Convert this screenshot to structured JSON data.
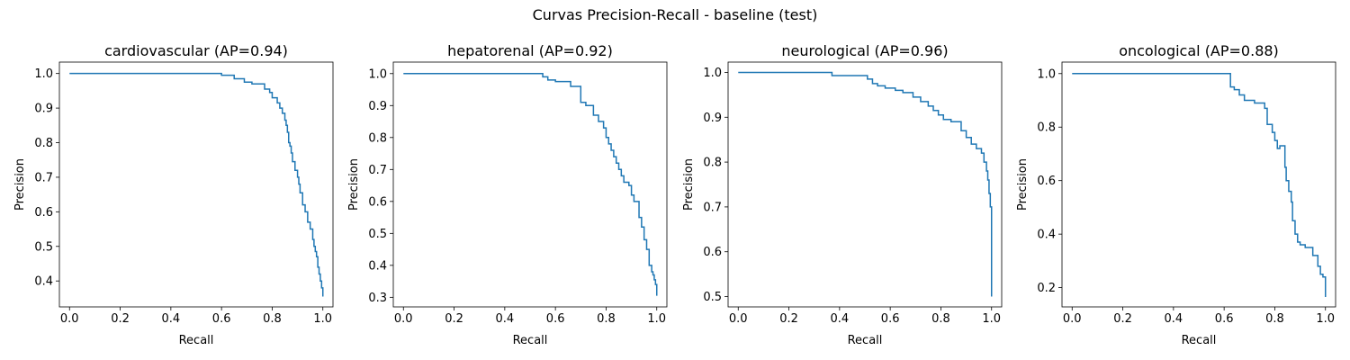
{
  "figure": {
    "title": "Curvas Precision-Recall - baseline (test)"
  },
  "chart_data": [
    {
      "type": "line",
      "title": "cardiovascular (AP=0.94)",
      "xlabel": "Recall",
      "ylabel": "Precision",
      "xlim": [
        -0.04,
        1.04
      ],
      "ylim": [
        0.325,
        1.033
      ],
      "xticks": [
        0.0,
        0.2,
        0.4,
        0.6,
        0.8,
        1.0
      ],
      "xtick_labels": [
        "0.0",
        "0.2",
        "0.4",
        "0.6",
        "0.8",
        "1.0"
      ],
      "yticks": [
        0.4,
        0.5,
        0.6,
        0.7,
        0.8,
        0.9,
        1.0
      ],
      "ytick_labels": [
        "0.4",
        "0.5",
        "0.6",
        "0.7",
        "0.8",
        "0.9",
        "1.0"
      ],
      "color": "#1f77b4",
      "series": [
        {
          "x": [
            0.0,
            0.6,
            0.6,
            0.65,
            0.65,
            0.69,
            0.69,
            0.72,
            0.72,
            0.77,
            0.77,
            0.79,
            0.79,
            0.8,
            0.8,
            0.82,
            0.82,
            0.83,
            0.83,
            0.84,
            0.84,
            0.85,
            0.85,
            0.855,
            0.855,
            0.86,
            0.86,
            0.865,
            0.865,
            0.87,
            0.87,
            0.875,
            0.875,
            0.88,
            0.88,
            0.89,
            0.89,
            0.9,
            0.9,
            0.905,
            0.905,
            0.91,
            0.91,
            0.92,
            0.92,
            0.93,
            0.93,
            0.94,
            0.94,
            0.95,
            0.95,
            0.96,
            0.96,
            0.965,
            0.965,
            0.97,
            0.97,
            0.975,
            0.975,
            0.98,
            0.98,
            0.985,
            0.985,
            0.99,
            0.99,
            0.995,
            0.995,
            1.0,
            1.0
          ],
          "y": [
            1.0,
            1.0,
            0.995,
            0.995,
            0.985,
            0.985,
            0.975,
            0.975,
            0.97,
            0.97,
            0.955,
            0.955,
            0.945,
            0.945,
            0.93,
            0.93,
            0.915,
            0.915,
            0.9,
            0.9,
            0.885,
            0.885,
            0.865,
            0.865,
            0.85,
            0.85,
            0.83,
            0.83,
            0.8,
            0.8,
            0.79,
            0.79,
            0.77,
            0.77,
            0.745,
            0.745,
            0.72,
            0.72,
            0.7,
            0.7,
            0.68,
            0.68,
            0.655,
            0.655,
            0.62,
            0.62,
            0.6,
            0.6,
            0.57,
            0.57,
            0.55,
            0.55,
            0.52,
            0.52,
            0.5,
            0.5,
            0.485,
            0.485,
            0.47,
            0.47,
            0.44,
            0.44,
            0.42,
            0.42,
            0.4,
            0.4,
            0.38,
            0.38,
            0.355
          ]
        }
      ]
    },
    {
      "type": "line",
      "title": "hepatorenal (AP=0.92)",
      "xlabel": "Recall",
      "ylabel": "Precision",
      "xlim": [
        -0.04,
        1.04
      ],
      "ylim": [
        0.27,
        1.036
      ],
      "xticks": [
        0.0,
        0.2,
        0.4,
        0.6,
        0.8,
        1.0
      ],
      "xtick_labels": [
        "0.0",
        "0.2",
        "0.4",
        "0.6",
        "0.8",
        "1.0"
      ],
      "yticks": [
        0.3,
        0.4,
        0.5,
        0.6,
        0.7,
        0.8,
        0.9,
        1.0
      ],
      "ytick_labels": [
        "0.3",
        "0.4",
        "0.5",
        "0.6",
        "0.7",
        "0.8",
        "0.9",
        "1.0"
      ],
      "color": "#1f77b4",
      "series": [
        {
          "x": [
            0.0,
            0.55,
            0.55,
            0.57,
            0.57,
            0.6,
            0.6,
            0.66,
            0.66,
            0.7,
            0.7,
            0.72,
            0.72,
            0.75,
            0.75,
            0.77,
            0.77,
            0.79,
            0.79,
            0.8,
            0.8,
            0.81,
            0.81,
            0.82,
            0.82,
            0.83,
            0.83,
            0.84,
            0.84,
            0.85,
            0.85,
            0.86,
            0.86,
            0.87,
            0.87,
            0.89,
            0.89,
            0.9,
            0.9,
            0.91,
            0.91,
            0.93,
            0.93,
            0.94,
            0.94,
            0.95,
            0.95,
            0.96,
            0.96,
            0.97,
            0.97,
            0.98,
            0.98,
            0.985,
            0.985,
            0.99,
            0.99,
            0.995,
            0.995,
            1.0,
            1.0
          ],
          "y": [
            1.0,
            1.0,
            0.99,
            0.99,
            0.98,
            0.98,
            0.975,
            0.975,
            0.96,
            0.96,
            0.91,
            0.91,
            0.9,
            0.9,
            0.87,
            0.87,
            0.85,
            0.85,
            0.83,
            0.83,
            0.8,
            0.8,
            0.78,
            0.78,
            0.76,
            0.76,
            0.74,
            0.74,
            0.72,
            0.72,
            0.7,
            0.7,
            0.68,
            0.68,
            0.66,
            0.66,
            0.65,
            0.65,
            0.62,
            0.62,
            0.6,
            0.6,
            0.55,
            0.55,
            0.52,
            0.52,
            0.48,
            0.48,
            0.45,
            0.45,
            0.4,
            0.4,
            0.38,
            0.38,
            0.37,
            0.37,
            0.355,
            0.355,
            0.34,
            0.34,
            0.305
          ]
        }
      ]
    },
    {
      "type": "line",
      "title": "neurological (AP=0.96)",
      "xlabel": "Recall",
      "ylabel": "Precision",
      "xlim": [
        -0.04,
        1.04
      ],
      "ylim": [
        0.477,
        1.023
      ],
      "xticks": [
        0.0,
        0.2,
        0.4,
        0.6,
        0.8,
        1.0
      ],
      "xtick_labels": [
        "0.0",
        "0.2",
        "0.4",
        "0.6",
        "0.8",
        "1.0"
      ],
      "yticks": [
        0.5,
        0.6,
        0.7,
        0.8,
        0.9,
        1.0
      ],
      "ytick_labels": [
        "0.5",
        "0.6",
        "0.7",
        "0.8",
        "0.9",
        "1.0"
      ],
      "color": "#1f77b4",
      "series": [
        {
          "x": [
            0.0,
            0.37,
            0.37,
            0.51,
            0.51,
            0.53,
            0.53,
            0.55,
            0.55,
            0.58,
            0.58,
            0.62,
            0.62,
            0.65,
            0.65,
            0.69,
            0.69,
            0.72,
            0.72,
            0.75,
            0.75,
            0.77,
            0.77,
            0.79,
            0.79,
            0.81,
            0.81,
            0.84,
            0.84,
            0.88,
            0.88,
            0.9,
            0.9,
            0.92,
            0.92,
            0.94,
            0.94,
            0.96,
            0.96,
            0.97,
            0.97,
            0.98,
            0.98,
            0.985,
            0.985,
            0.99,
            0.99,
            0.995,
            0.995,
            1.0,
            1.0
          ],
          "y": [
            1.0,
            1.0,
            0.993,
            0.993,
            0.985,
            0.985,
            0.975,
            0.975,
            0.97,
            0.97,
            0.965,
            0.965,
            0.96,
            0.96,
            0.955,
            0.955,
            0.945,
            0.945,
            0.935,
            0.935,
            0.925,
            0.925,
            0.915,
            0.915,
            0.905,
            0.905,
            0.895,
            0.895,
            0.89,
            0.89,
            0.87,
            0.87,
            0.855,
            0.855,
            0.84,
            0.84,
            0.83,
            0.83,
            0.82,
            0.82,
            0.8,
            0.8,
            0.78,
            0.78,
            0.76,
            0.76,
            0.73,
            0.73,
            0.7,
            0.7,
            0.5
          ]
        }
      ]
    },
    {
      "type": "line",
      "title": "oncological (AP=0.88)",
      "xlabel": "Recall",
      "ylabel": "Precision",
      "xlim": [
        -0.04,
        1.04
      ],
      "ylim": [
        0.128,
        1.043
      ],
      "xticks": [
        0.0,
        0.2,
        0.4,
        0.6,
        0.8,
        1.0
      ],
      "xtick_labels": [
        "0.0",
        "0.2",
        "0.4",
        "0.6",
        "0.8",
        "1.0"
      ],
      "yticks": [
        0.2,
        0.4,
        0.6,
        0.8,
        1.0
      ],
      "ytick_labels": [
        "0.2",
        "0.4",
        "0.6",
        "0.8",
        "1.0"
      ],
      "color": "#1f77b4",
      "series": [
        {
          "x": [
            0.0,
            0.625,
            0.625,
            0.64,
            0.64,
            0.66,
            0.66,
            0.68,
            0.68,
            0.72,
            0.72,
            0.76,
            0.76,
            0.77,
            0.77,
            0.79,
            0.79,
            0.8,
            0.8,
            0.81,
            0.81,
            0.82,
            0.82,
            0.84,
            0.84,
            0.845,
            0.845,
            0.855,
            0.855,
            0.865,
            0.865,
            0.87,
            0.87,
            0.88,
            0.88,
            0.89,
            0.89,
            0.9,
            0.9,
            0.92,
            0.92,
            0.95,
            0.95,
            0.97,
            0.97,
            0.98,
            0.98,
            0.99,
            0.99,
            1.0,
            1.0
          ],
          "y": [
            1.0,
            1.0,
            0.95,
            0.95,
            0.94,
            0.94,
            0.92,
            0.92,
            0.9,
            0.9,
            0.89,
            0.89,
            0.87,
            0.87,
            0.81,
            0.81,
            0.78,
            0.78,
            0.75,
            0.75,
            0.72,
            0.72,
            0.73,
            0.73,
            0.65,
            0.65,
            0.6,
            0.6,
            0.56,
            0.56,
            0.52,
            0.52,
            0.45,
            0.45,
            0.4,
            0.4,
            0.37,
            0.37,
            0.36,
            0.36,
            0.35,
            0.35,
            0.32,
            0.32,
            0.28,
            0.28,
            0.25,
            0.25,
            0.24,
            0.24,
            0.165
          ]
        }
      ]
    }
  ]
}
